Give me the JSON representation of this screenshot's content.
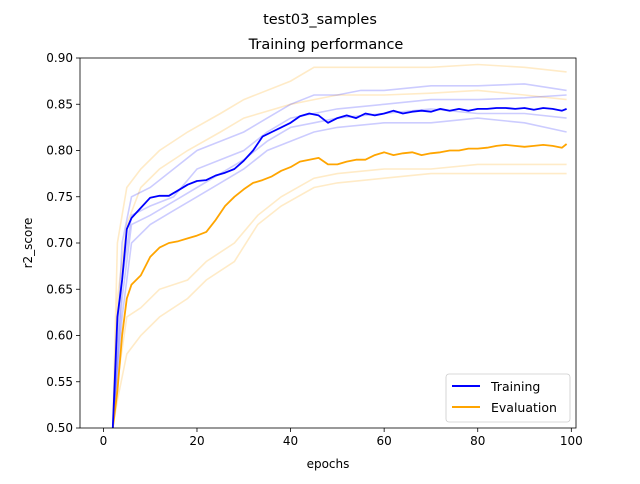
{
  "chart_data": {
    "type": "line",
    "suptitle": "test03_samples",
    "title": "Training performance",
    "xlabel": "epochs",
    "ylabel": "r2_score",
    "xlim": [
      -5,
      101
    ],
    "ylim": [
      0.5,
      0.9
    ],
    "xticks": [
      0,
      20,
      40,
      60,
      80,
      100
    ],
    "yticks": [
      0.5,
      0.55,
      0.6,
      0.65,
      0.7,
      0.75,
      0.8,
      0.85,
      0.9
    ],
    "grid": false,
    "legend_position": "lower-right",
    "x_range": [
      2,
      99
    ],
    "series": [
      {
        "name": "Training",
        "color": "#0000ff",
        "points": [
          [
            2,
            0.5
          ],
          [
            3,
            0.62
          ],
          [
            4,
            0.66
          ],
          [
            5,
            0.715
          ],
          [
            6,
            0.727
          ],
          [
            8,
            0.738
          ],
          [
            10,
            0.749
          ],
          [
            12,
            0.751
          ],
          [
            14,
            0.751
          ],
          [
            16,
            0.757
          ],
          [
            18,
            0.763
          ],
          [
            20,
            0.767
          ],
          [
            22,
            0.768
          ],
          [
            24,
            0.773
          ],
          [
            26,
            0.776
          ],
          [
            28,
            0.78
          ],
          [
            30,
            0.789
          ],
          [
            32,
            0.8
          ],
          [
            34,
            0.815
          ],
          [
            36,
            0.82
          ],
          [
            38,
            0.825
          ],
          [
            40,
            0.83
          ],
          [
            42,
            0.837
          ],
          [
            44,
            0.84
          ],
          [
            46,
            0.838
          ],
          [
            48,
            0.83
          ],
          [
            50,
            0.835
          ],
          [
            52,
            0.838
          ],
          [
            54,
            0.835
          ],
          [
            56,
            0.84
          ],
          [
            58,
            0.838
          ],
          [
            60,
            0.84
          ],
          [
            62,
            0.843
          ],
          [
            64,
            0.84
          ],
          [
            66,
            0.842
          ],
          [
            68,
            0.843
          ],
          [
            70,
            0.842
          ],
          [
            72,
            0.845
          ],
          [
            74,
            0.843
          ],
          [
            76,
            0.845
          ],
          [
            78,
            0.843
          ],
          [
            80,
            0.845
          ],
          [
            82,
            0.845
          ],
          [
            84,
            0.846
          ],
          [
            86,
            0.846
          ],
          [
            88,
            0.845
          ],
          [
            90,
            0.846
          ],
          [
            92,
            0.844
          ],
          [
            94,
            0.846
          ],
          [
            96,
            0.845
          ],
          [
            98,
            0.843
          ],
          [
            99,
            0.845
          ]
        ]
      },
      {
        "name": "Evaluation",
        "color": "#ffa500",
        "points": [
          [
            2,
            0.5
          ],
          [
            3,
            0.54
          ],
          [
            4,
            0.6
          ],
          [
            5,
            0.64
          ],
          [
            6,
            0.655
          ],
          [
            8,
            0.665
          ],
          [
            10,
            0.685
          ],
          [
            12,
            0.695
          ],
          [
            14,
            0.7
          ],
          [
            16,
            0.702
          ],
          [
            18,
            0.705
          ],
          [
            20,
            0.708
          ],
          [
            22,
            0.712
          ],
          [
            24,
            0.725
          ],
          [
            26,
            0.74
          ],
          [
            28,
            0.75
          ],
          [
            30,
            0.758
          ],
          [
            32,
            0.765
          ],
          [
            34,
            0.768
          ],
          [
            36,
            0.772
          ],
          [
            38,
            0.778
          ],
          [
            40,
            0.782
          ],
          [
            42,
            0.788
          ],
          [
            44,
            0.79
          ],
          [
            46,
            0.792
          ],
          [
            48,
            0.785
          ],
          [
            50,
            0.785
          ],
          [
            52,
            0.788
          ],
          [
            54,
            0.79
          ],
          [
            56,
            0.79
          ],
          [
            58,
            0.795
          ],
          [
            60,
            0.798
          ],
          [
            62,
            0.795
          ],
          [
            64,
            0.797
          ],
          [
            66,
            0.798
          ],
          [
            68,
            0.795
          ],
          [
            70,
            0.797
          ],
          [
            72,
            0.798
          ],
          [
            74,
            0.8
          ],
          [
            76,
            0.8
          ],
          [
            78,
            0.802
          ],
          [
            80,
            0.802
          ],
          [
            82,
            0.803
          ],
          [
            84,
            0.805
          ],
          [
            86,
            0.806
          ],
          [
            88,
            0.805
          ],
          [
            90,
            0.804
          ],
          [
            92,
            0.805
          ],
          [
            94,
            0.806
          ],
          [
            96,
            0.805
          ],
          [
            98,
            0.803
          ],
          [
            99,
            0.807
          ]
        ]
      }
    ],
    "sample_runs_training": [
      {
        "points": [
          [
            2,
            0.5
          ],
          [
            4,
            0.7
          ],
          [
            6,
            0.75
          ],
          [
            10,
            0.76
          ],
          [
            15,
            0.78
          ],
          [
            20,
            0.8
          ],
          [
            25,
            0.81
          ],
          [
            30,
            0.82
          ],
          [
            35,
            0.835
          ],
          [
            40,
            0.85
          ],
          [
            45,
            0.86
          ],
          [
            50,
            0.86
          ],
          [
            55,
            0.865
          ],
          [
            60,
            0.865
          ],
          [
            70,
            0.87
          ],
          [
            80,
            0.87
          ],
          [
            90,
            0.872
          ],
          [
            99,
            0.865
          ]
        ]
      },
      {
        "points": [
          [
            2,
            0.5
          ],
          [
            4,
            0.66
          ],
          [
            6,
            0.73
          ],
          [
            10,
            0.74
          ],
          [
            15,
            0.75
          ],
          [
            20,
            0.78
          ],
          [
            25,
            0.79
          ],
          [
            30,
            0.8
          ],
          [
            35,
            0.82
          ],
          [
            40,
            0.835
          ],
          [
            45,
            0.84
          ],
          [
            50,
            0.845
          ],
          [
            60,
            0.85
          ],
          [
            70,
            0.855
          ],
          [
            80,
            0.855
          ],
          [
            90,
            0.857
          ],
          [
            99,
            0.86
          ]
        ]
      },
      {
        "points": [
          [
            2,
            0.5
          ],
          [
            4,
            0.62
          ],
          [
            6,
            0.7
          ],
          [
            10,
            0.72
          ],
          [
            15,
            0.735
          ],
          [
            20,
            0.75
          ],
          [
            25,
            0.765
          ],
          [
            30,
            0.78
          ],
          [
            35,
            0.8
          ],
          [
            40,
            0.81
          ],
          [
            45,
            0.82
          ],
          [
            50,
            0.825
          ],
          [
            60,
            0.83
          ],
          [
            70,
            0.83
          ],
          [
            80,
            0.835
          ],
          [
            90,
            0.83
          ],
          [
            99,
            0.82
          ]
        ]
      },
      {
        "points": [
          [
            2,
            0.5
          ],
          [
            4,
            0.64
          ],
          [
            6,
            0.72
          ],
          [
            10,
            0.73
          ],
          [
            15,
            0.745
          ],
          [
            20,
            0.76
          ],
          [
            25,
            0.775
          ],
          [
            30,
            0.79
          ],
          [
            35,
            0.81
          ],
          [
            40,
            0.825
          ],
          [
            45,
            0.83
          ],
          [
            50,
            0.835
          ],
          [
            60,
            0.84
          ],
          [
            70,
            0.845
          ],
          [
            80,
            0.84
          ],
          [
            90,
            0.84
          ],
          [
            99,
            0.835
          ]
        ]
      }
    ],
    "sample_runs_evaluation": [
      {
        "points": [
          [
            2,
            0.5
          ],
          [
            3,
            0.7
          ],
          [
            5,
            0.76
          ],
          [
            8,
            0.78
          ],
          [
            12,
            0.8
          ],
          [
            18,
            0.82
          ],
          [
            25,
            0.84
          ],
          [
            30,
            0.855
          ],
          [
            40,
            0.875
          ],
          [
            45,
            0.89
          ],
          [
            50,
            0.89
          ],
          [
            60,
            0.89
          ],
          [
            70,
            0.89
          ],
          [
            80,
            0.893
          ],
          [
            90,
            0.89
          ],
          [
            99,
            0.885
          ]
        ]
      },
      {
        "points": [
          [
            2,
            0.5
          ],
          [
            3,
            0.64
          ],
          [
            5,
            0.72
          ],
          [
            8,
            0.76
          ],
          [
            12,
            0.78
          ],
          [
            18,
            0.8
          ],
          [
            25,
            0.82
          ],
          [
            30,
            0.835
          ],
          [
            40,
            0.85
          ],
          [
            45,
            0.855
          ],
          [
            50,
            0.86
          ],
          [
            60,
            0.86
          ],
          [
            70,
            0.862
          ],
          [
            80,
            0.865
          ],
          [
            90,
            0.86
          ],
          [
            99,
            0.855
          ]
        ]
      },
      {
        "points": [
          [
            2,
            0.5
          ],
          [
            3,
            0.55
          ],
          [
            5,
            0.62
          ],
          [
            8,
            0.63
          ],
          [
            12,
            0.65
          ],
          [
            18,
            0.66
          ],
          [
            22,
            0.68
          ],
          [
            28,
            0.7
          ],
          [
            33,
            0.73
          ],
          [
            38,
            0.75
          ],
          [
            45,
            0.77
          ],
          [
            50,
            0.775
          ],
          [
            60,
            0.78
          ],
          [
            70,
            0.78
          ],
          [
            80,
            0.785
          ],
          [
            90,
            0.785
          ],
          [
            99,
            0.785
          ]
        ]
      },
      {
        "points": [
          [
            2,
            0.5
          ],
          [
            3,
            0.53
          ],
          [
            5,
            0.58
          ],
          [
            8,
            0.6
          ],
          [
            12,
            0.62
          ],
          [
            18,
            0.64
          ],
          [
            22,
            0.66
          ],
          [
            28,
            0.68
          ],
          [
            33,
            0.72
          ],
          [
            38,
            0.74
          ],
          [
            45,
            0.76
          ],
          [
            50,
            0.765
          ],
          [
            60,
            0.77
          ],
          [
            70,
            0.775
          ],
          [
            80,
            0.775
          ],
          [
            90,
            0.775
          ],
          [
            99,
            0.775
          ]
        ]
      }
    ]
  }
}
